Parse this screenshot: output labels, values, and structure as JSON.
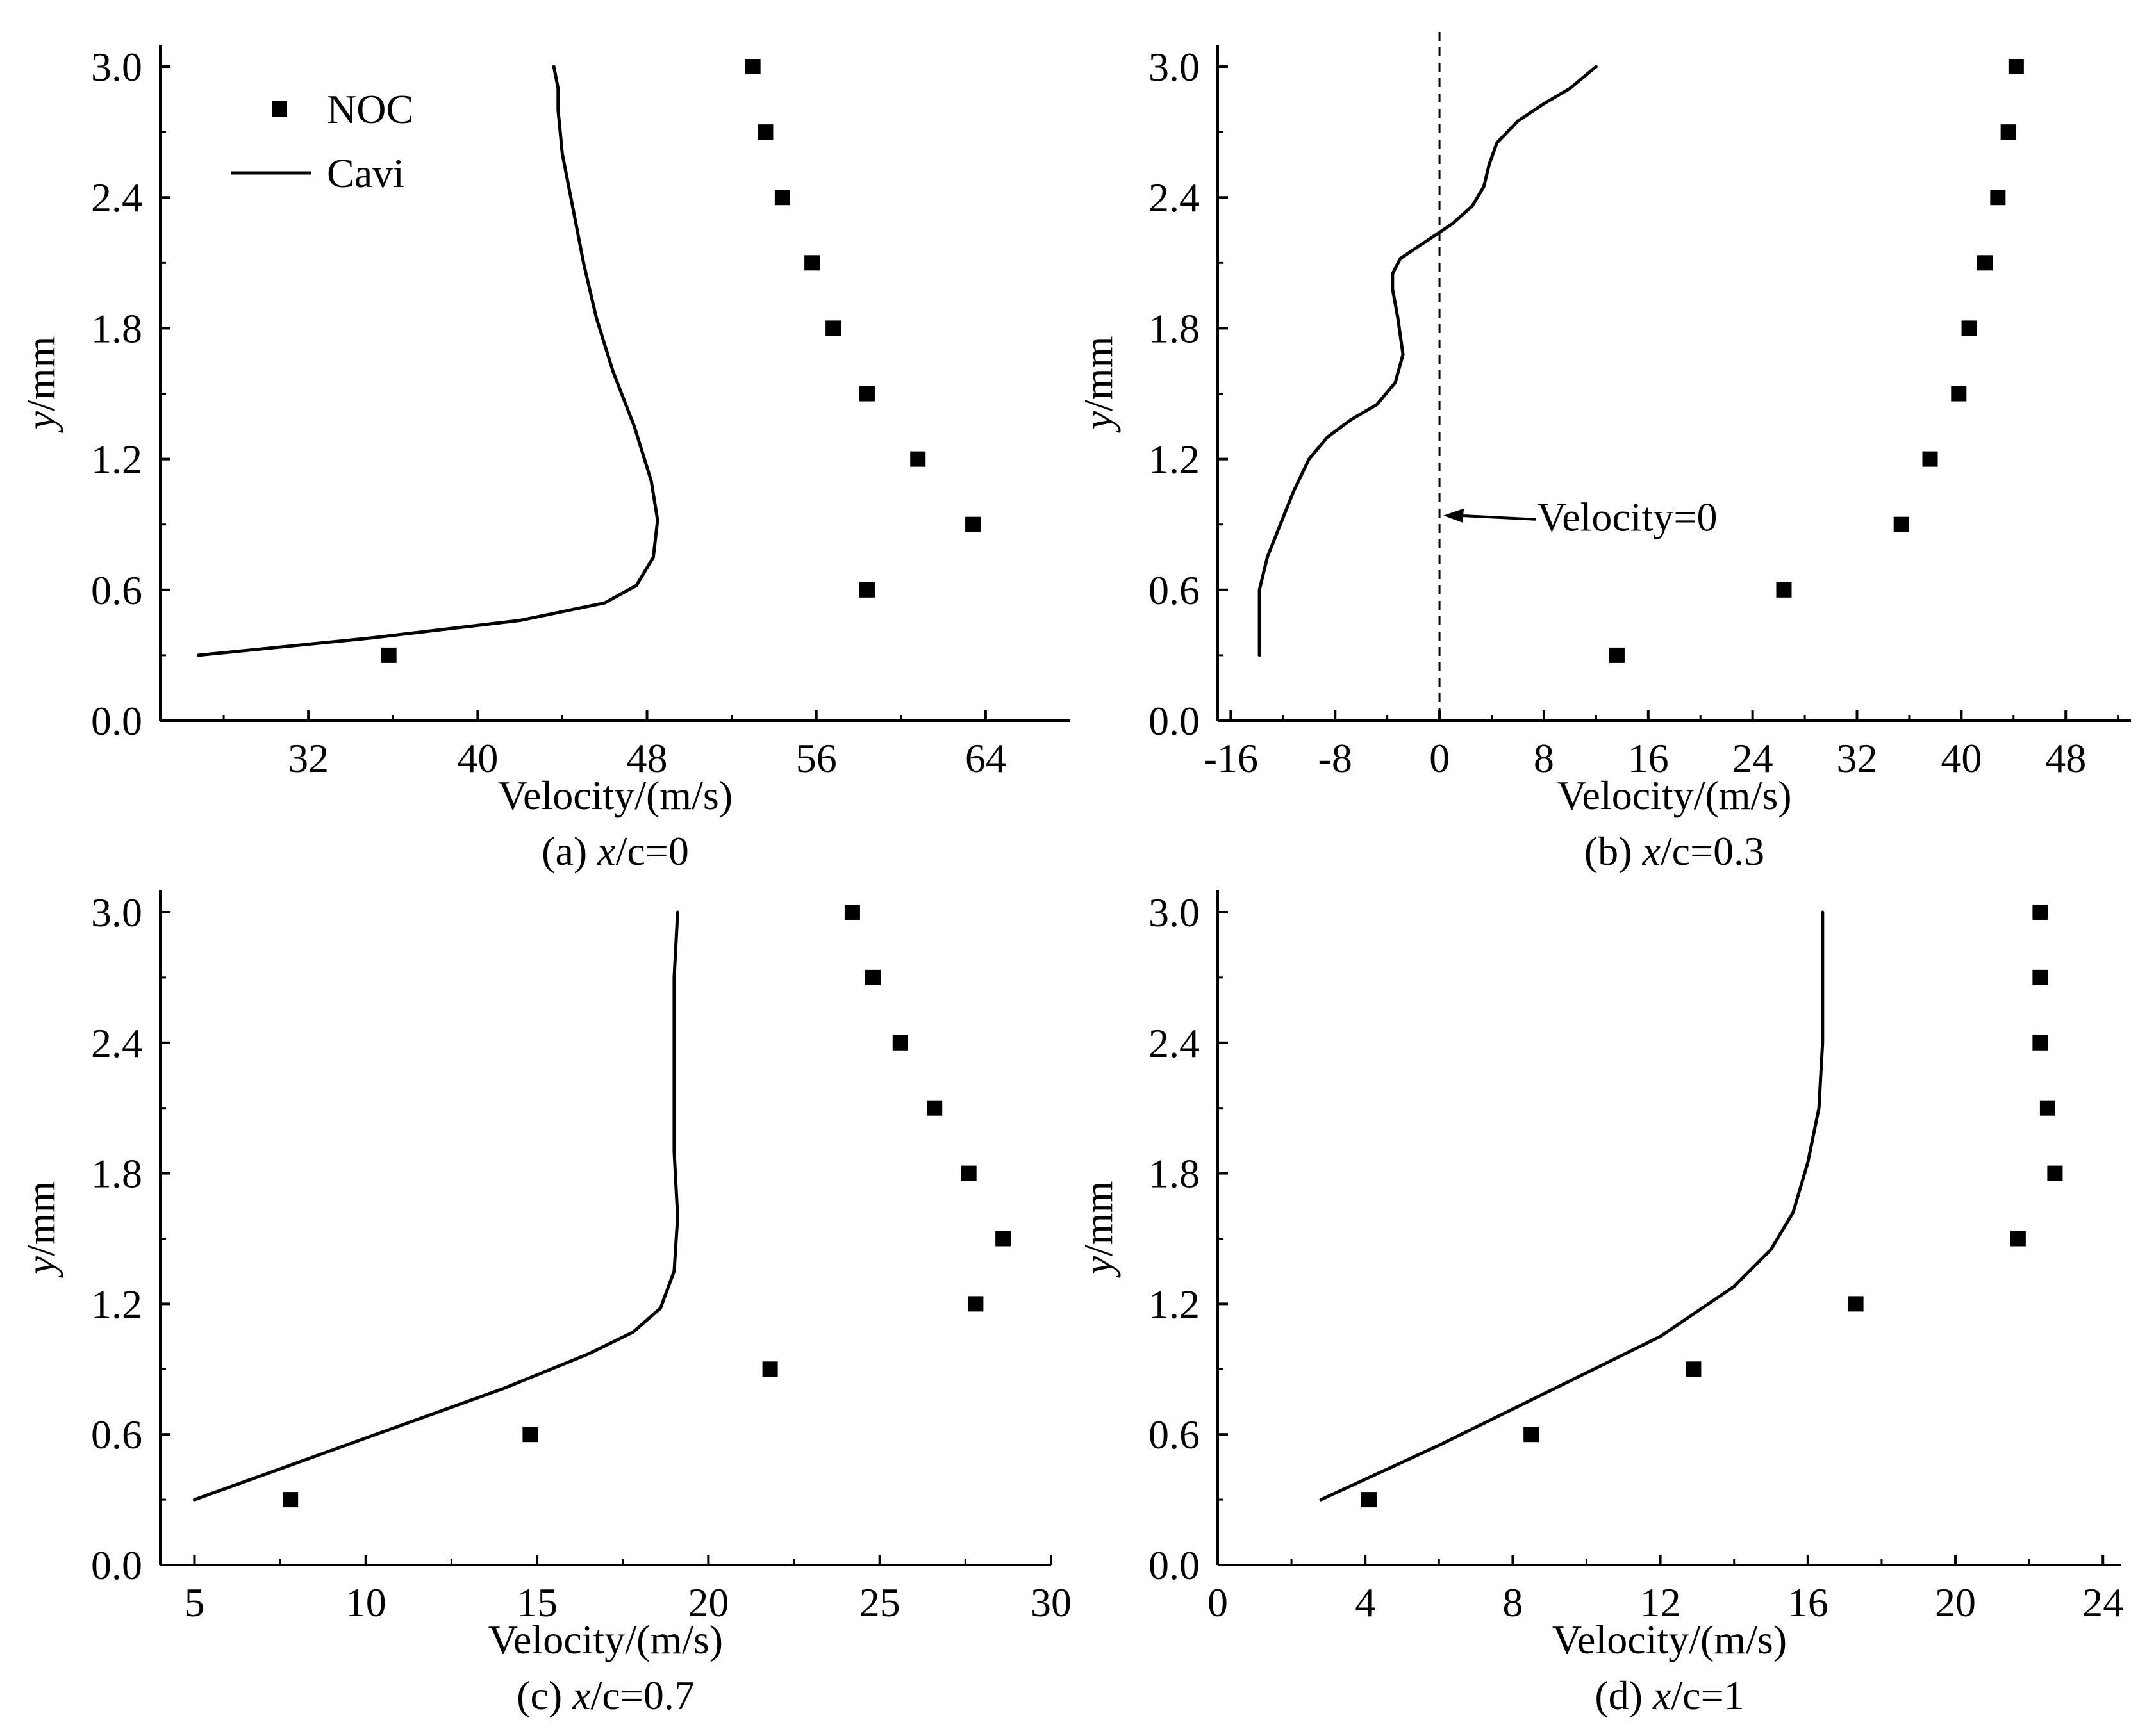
{
  "chart_data": [
    {
      "type": "scatter+line",
      "panel": "a",
      "caption_prefix": "(a) ",
      "caption_var": "x",
      "caption_suffix": "/c=0",
      "xlabel": "Velocity/(m/s)",
      "ylabel_var": "y",
      "ylabel_unit": "/mm",
      "xlim": [
        25,
        68
      ],
      "ylim": [
        0,
        3.1
      ],
      "xticks": [
        32,
        40,
        48,
        56,
        64
      ],
      "yticks": [
        "0.0",
        "0.6",
        "1.2",
        "1.8",
        "2.4",
        "3.0"
      ],
      "legend": {
        "position": "top-left",
        "entries": [
          "NOC",
          "Cavi"
        ]
      },
      "series": [
        {
          "name": "NOC",
          "kind": "scatter",
          "x": [
            35.8,
            58.4,
            63.4,
            60.8,
            58.4,
            56.8,
            55.8,
            54.4,
            53.6,
            53.0
          ],
          "y": [
            0.3,
            0.6,
            0.9,
            1.2,
            1.5,
            1.8,
            2.1,
            2.4,
            2.7,
            3.0
          ]
        },
        {
          "name": "Cavi",
          "kind": "line",
          "x": [
            26.8,
            35,
            42,
            46,
            47.5,
            48.3,
            48.5,
            48.2,
            47.4,
            46.4,
            45.6,
            45.0,
            44.5,
            44.0,
            43.8,
            43.8,
            43.6
          ],
          "y": [
            0.3,
            0.38,
            0.46,
            0.54,
            0.62,
            0.75,
            0.92,
            1.1,
            1.35,
            1.6,
            1.85,
            2.1,
            2.35,
            2.6,
            2.8,
            2.9,
            3.0
          ]
        }
      ]
    },
    {
      "type": "scatter+line",
      "panel": "b",
      "caption_prefix": "(b) ",
      "caption_var": "x",
      "caption_suffix": "/c=0.3",
      "xlabel": "Velocity/(m/s)",
      "ylabel_var": "y",
      "ylabel_unit": "/mm",
      "xlim": [
        -17,
        53
      ],
      "ylim": [
        0,
        3.1
      ],
      "xticks": [
        -16,
        -8,
        0,
        8,
        16,
        24,
        32,
        40,
        48
      ],
      "yticks": [
        "0.0",
        "0.6",
        "1.2",
        "1.8",
        "2.4",
        "3.0"
      ],
      "annotation": {
        "text": "Velocity=0",
        "points_to_x": 0,
        "at_y": 0.95
      },
      "series": [
        {
          "name": "NOC",
          "kind": "scatter",
          "x": [
            13.6,
            26.4,
            35.4,
            37.6,
            39.8,
            40.6,
            41.8,
            42.8,
            43.6,
            44.2
          ],
          "y": [
            0.3,
            0.6,
            0.9,
            1.2,
            1.5,
            1.8,
            2.1,
            2.4,
            2.7,
            3.0
          ]
        },
        {
          "name": "Cavi",
          "kind": "line",
          "x": [
            -13.8,
            -13.8,
            -13.2,
            -12.2,
            -11.2,
            -10.0,
            -8.6,
            -6.8,
            -4.8,
            -3.4,
            -2.8,
            -3.2,
            -3.6,
            -3.6,
            -3.0,
            -1.0,
            1.0,
            2.5,
            3.4,
            3.8,
            4.4,
            6.0,
            8.0,
            10.0,
            12.0
          ],
          "y": [
            0.3,
            0.6,
            0.75,
            0.9,
            1.05,
            1.2,
            1.3,
            1.38,
            1.45,
            1.55,
            1.68,
            1.85,
            1.98,
            2.05,
            2.12,
            2.2,
            2.28,
            2.36,
            2.45,
            2.55,
            2.65,
            2.75,
            2.83,
            2.9,
            3.0
          ]
        }
      ]
    },
    {
      "type": "scatter+line",
      "panel": "c",
      "caption_prefix": "(c) ",
      "caption_var": "x",
      "caption_suffix": "/c=0.7",
      "xlabel": "Velocity/(m/s)",
      "ylabel_var": "y",
      "ylabel_unit": "/mm",
      "xlim": [
        4,
        30
      ],
      "ylim": [
        0,
        3.1
      ],
      "xticks": [
        5,
        10,
        15,
        20,
        25,
        30
      ],
      "yticks": [
        "0.0",
        "0.6",
        "1.2",
        "1.8",
        "2.4",
        "3.0"
      ],
      "series": [
        {
          "name": "NOC",
          "kind": "scatter",
          "x": [
            7.8,
            14.8,
            21.8,
            27.8,
            28.6,
            27.6,
            26.6,
            25.6,
            24.8,
            24.2
          ],
          "y": [
            0.3,
            0.6,
            0.9,
            1.2,
            1.5,
            1.8,
            2.1,
            2.4,
            2.7,
            3.0
          ]
        },
        {
          "name": "Cavi",
          "kind": "line",
          "x": [
            5.0,
            8,
            11,
            14,
            16.5,
            17.8,
            18.6,
            19.0,
            19.1,
            19.0,
            19.0,
            19.0,
            19.1
          ],
          "y": [
            0.3,
            0.47,
            0.64,
            0.81,
            0.97,
            1.07,
            1.18,
            1.35,
            1.6,
            1.9,
            2.3,
            2.7,
            3.0
          ]
        }
      ]
    },
    {
      "type": "scatter+line",
      "panel": "d",
      "caption_prefix": "(d) ",
      "caption_var": "x",
      "caption_suffix": "/c=1",
      "xlabel": "Velocity/(m/s)",
      "ylabel_var": "y",
      "ylabel_unit": "/mm",
      "xlim": [
        0,
        24.5
      ],
      "ylim": [
        0,
        3.1
      ],
      "xticks": [
        0,
        4,
        8,
        12,
        16,
        20,
        24
      ],
      "yticks": [
        "0.0",
        "0.6",
        "1.2",
        "1.8",
        "2.4",
        "3.0"
      ],
      "series": [
        {
          "name": "NOC",
          "kind": "scatter",
          "x": [
            4.1,
            8.5,
            12.9,
            17.3,
            21.7,
            22.7,
            22.5,
            22.3,
            22.3,
            22.3
          ],
          "y": [
            0.3,
            0.6,
            0.9,
            1.2,
            1.5,
            1.8,
            2.1,
            2.4,
            2.7,
            3.0
          ]
        },
        {
          "name": "Cavi",
          "kind": "line",
          "x": [
            2.8,
            6,
            9,
            12,
            14.0,
            15.0,
            15.6,
            16.0,
            16.3,
            16.4,
            16.4,
            16.4
          ],
          "y": [
            0.3,
            0.55,
            0.8,
            1.05,
            1.28,
            1.45,
            1.62,
            1.85,
            2.1,
            2.4,
            2.7,
            3.0
          ]
        }
      ]
    }
  ]
}
